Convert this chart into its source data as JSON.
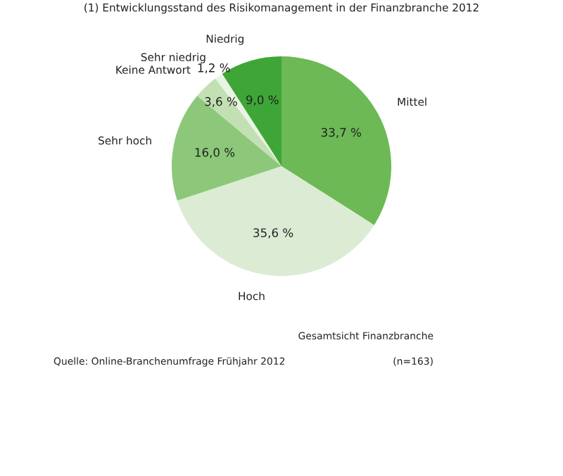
{
  "chart_data": {
    "type": "pie",
    "title": "(1) Entwicklungsstand des Risikomanagement in der Finanzbranche 2012",
    "categories": [
      "Mittel",
      "Hoch",
      "Sehr hoch",
      "Keine Antwort",
      "Sehr niedrig",
      "Niedrig"
    ],
    "values": [
      33.7,
      35.6,
      16.0,
      3.6,
      1.2,
      9.0
    ],
    "value_labels": [
      "33,7 %",
      "35,6 %",
      "16,0 %",
      "3,6 %",
      "1,2 %",
      "9,0 %"
    ],
    "colors": [
      "#6cb955",
      "#dcecd4",
      "#8dc87a",
      "#c2e0b3",
      "#e9f4e3",
      "#3ea636"
    ],
    "annotations": [
      "Gesamtsicht Finanzbranche",
      "(n=163)",
      "Quelle: Online-Branchenumfrage Frühjahr 2012"
    ],
    "legend": false
  }
}
